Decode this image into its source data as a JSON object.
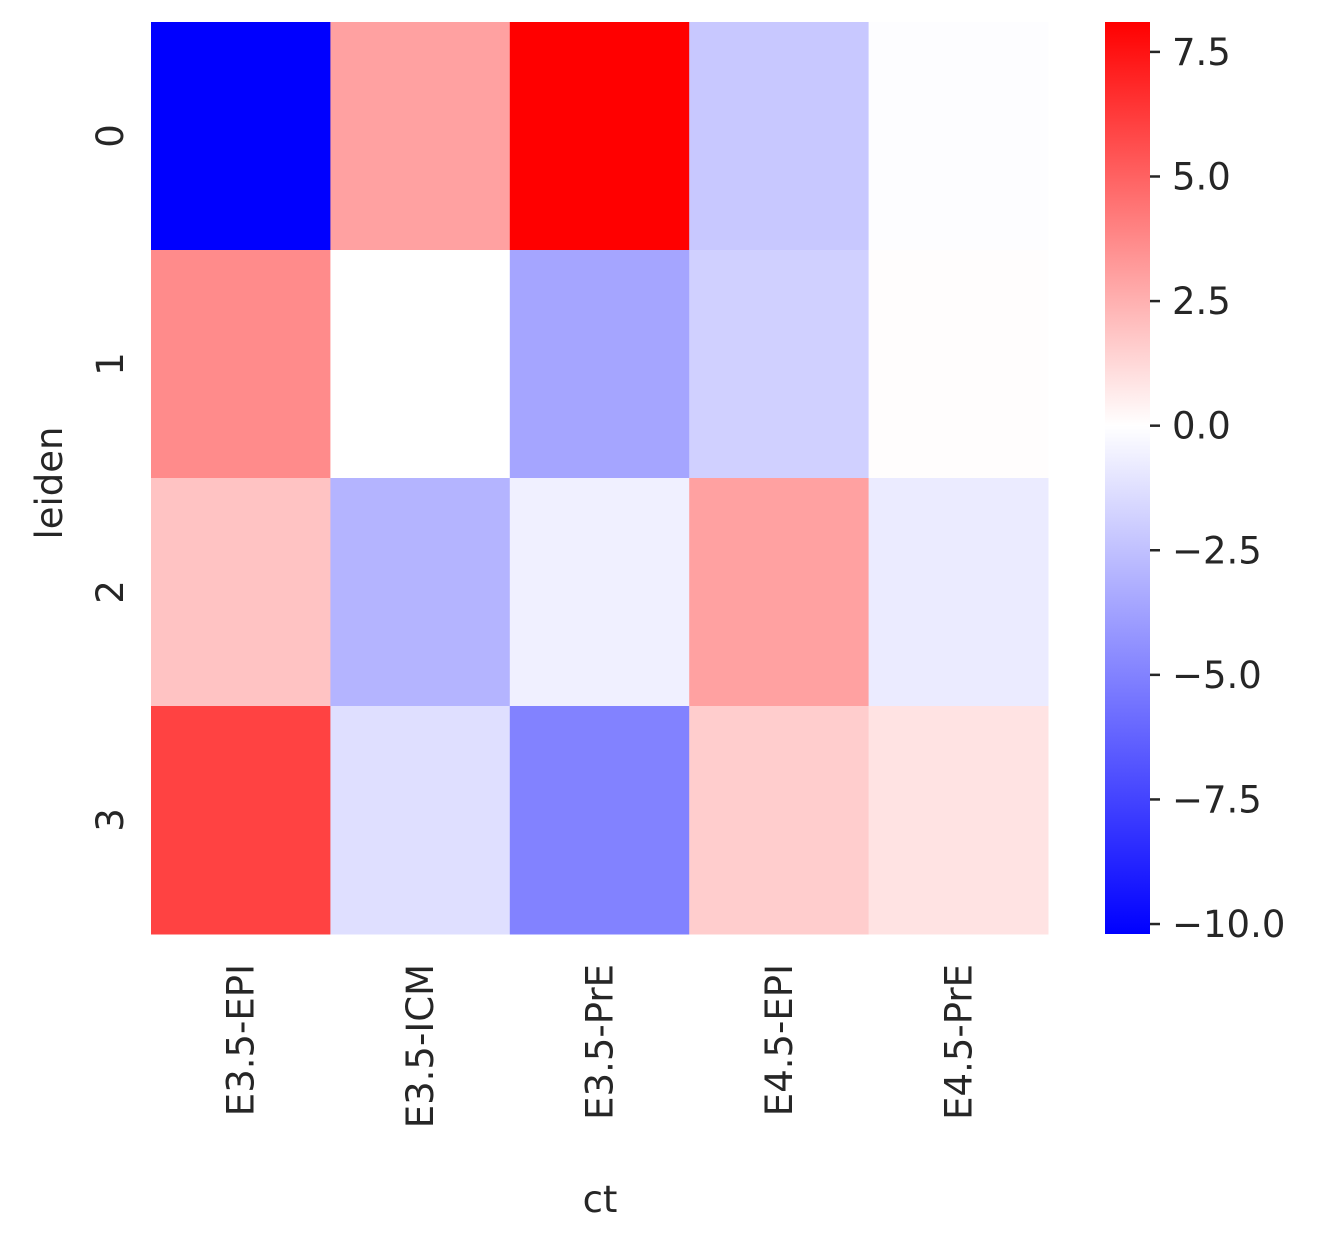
{
  "chart_data": {
    "type": "heatmap",
    "title": "",
    "xlabel": "ct",
    "ylabel": "leiden",
    "x_categories": [
      "E3.5-EPI",
      "E3.5-ICM",
      "E3.5-PrE",
      "E4.5-EPI",
      "E4.5-PrE"
    ],
    "y_categories": [
      "0",
      "1",
      "2",
      "3"
    ],
    "values": [
      [
        -10.2,
        3.0,
        8.1,
        -2.2,
        -0.1
      ],
      [
        3.7,
        0.0,
        -3.6,
        -1.9,
        0.05
      ],
      [
        1.9,
        -3.0,
        -0.6,
        3.0,
        -0.8
      ],
      [
        6.0,
        -1.3,
        -5.0,
        1.6,
        0.9
      ]
    ],
    "colorbar": {
      "vmin": -10.2,
      "vmax": 8.1,
      "ticks": [
        7.5,
        5.0,
        2.5,
        0.0,
        -2.5,
        -5.0,
        -7.5,
        -10.0
      ],
      "tick_labels": [
        "7.5",
        "5.0",
        "2.5",
        "0.0",
        "−2.5",
        "−5.0",
        "−7.5",
        "−10.0"
      ]
    },
    "colormap": [
      "#0000ff",
      "#ffffff",
      "#ff0000"
    ],
    "grid": false,
    "legend": "colorbar-right"
  }
}
